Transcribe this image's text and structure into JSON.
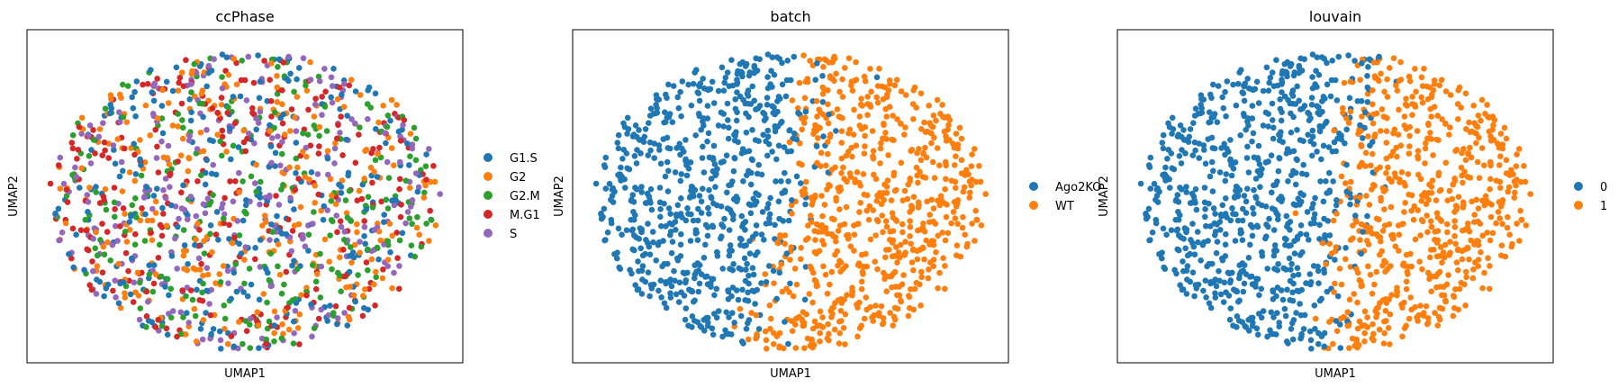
{
  "chart_data": [
    {
      "type": "scatter",
      "title": "ccPhase",
      "xlabel": "UMAP1",
      "ylabel": "UMAP2",
      "grid": false,
      "legend_placement": "right",
      "colors": {
        "G1.S": "#1f77b4",
        "G2": "#ff7f0e",
        "G2.M": "#2ca02c",
        "M.G1": "#d62728",
        "S": "#9467bd"
      },
      "series": [
        {
          "name": "G1.S",
          "color": "#1f77b4"
        },
        {
          "name": "G2",
          "color": "#ff7f0e"
        },
        {
          "name": "G2.M",
          "color": "#2ca02c"
        },
        {
          "name": "M.G1",
          "color": "#d62728"
        },
        {
          "name": "S",
          "color": "#9467bd"
        }
      ],
      "mixing": "uniform",
      "approx_points": 1350
    },
    {
      "type": "scatter",
      "title": "batch",
      "xlabel": "UMAP1",
      "ylabel": "UMAP2",
      "grid": false,
      "legend_placement": "right",
      "series": [
        {
          "name": "Ago2KO",
          "color": "#1f77b4"
        },
        {
          "name": "WT",
          "color": "#ff7f0e"
        }
      ],
      "mixing": "split",
      "approx_points": 1350
    },
    {
      "type": "scatter",
      "title": "louvain",
      "xlabel": "UMAP1",
      "ylabel": "UMAP2",
      "grid": false,
      "legend_placement": "right",
      "series": [
        {
          "name": "0",
          "color": "#1f77b4"
        },
        {
          "name": "1",
          "color": "#ff7f0e"
        }
      ],
      "mixing": "split",
      "approx_points": 1350
    }
  ]
}
